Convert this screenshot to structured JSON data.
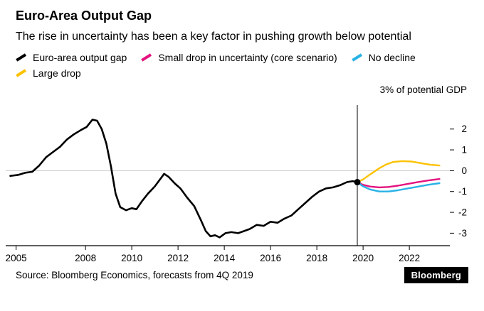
{
  "header": {
    "title": "Euro-Area Output Gap",
    "subtitle": "The rise in uncertainty has been a key factor in pushing growth below potential"
  },
  "legend": [
    {
      "label": "Euro-area output gap",
      "color": "#000000"
    },
    {
      "label": "Small drop in uncertainty (core scenario)",
      "color": "#e4127f"
    },
    {
      "label": "No decline",
      "color": "#29b2e6"
    },
    {
      "label": "Large drop",
      "color": "#fcc200"
    }
  ],
  "axis_note": "3% of potential GDP",
  "footer": {
    "source": "Source: Bloomberg Economics, forecasts from 4Q 2019",
    "brand": "Bloomberg"
  },
  "chart_data": {
    "type": "line",
    "title": "Euro-Area Output Gap",
    "xlabel": "",
    "ylabel": "% of potential GDP",
    "xlim": [
      2004.55,
      2023.75
    ],
    "ylim": [
      -3.6,
      3.15
    ],
    "x_ticks": [
      2005,
      2008,
      2010,
      2012,
      2014,
      2016,
      2018,
      2020,
      2022
    ],
    "y_ticks": [
      2,
      1,
      0,
      -1,
      -2,
      -3
    ],
    "zero_line_color": "#c9c9c9",
    "forecast_divider_x": 2019.75,
    "forecast_start_point": {
      "x": 2019.75,
      "y": -0.55
    },
    "series": [
      {
        "name": "Euro-area output gap",
        "color": "#000000",
        "width": 2.6,
        "points": [
          [
            2004.75,
            -0.25
          ],
          [
            2005.1,
            -0.2
          ],
          [
            2005.4,
            -0.1
          ],
          [
            2005.7,
            -0.05
          ],
          [
            2006.0,
            0.25
          ],
          [
            2006.3,
            0.65
          ],
          [
            2006.6,
            0.9
          ],
          [
            2006.9,
            1.15
          ],
          [
            2007.2,
            1.5
          ],
          [
            2007.5,
            1.75
          ],
          [
            2007.8,
            1.95
          ],
          [
            2008.05,
            2.1
          ],
          [
            2008.3,
            2.45
          ],
          [
            2008.5,
            2.4
          ],
          [
            2008.7,
            2.0
          ],
          [
            2008.9,
            1.3
          ],
          [
            2009.1,
            0.2
          ],
          [
            2009.3,
            -1.1
          ],
          [
            2009.5,
            -1.75
          ],
          [
            2009.75,
            -1.9
          ],
          [
            2010.0,
            -1.8
          ],
          [
            2010.2,
            -1.85
          ],
          [
            2010.45,
            -1.45
          ],
          [
            2010.7,
            -1.1
          ],
          [
            2011.0,
            -0.75
          ],
          [
            2011.2,
            -0.45
          ],
          [
            2011.4,
            -0.15
          ],
          [
            2011.6,
            -0.3
          ],
          [
            2011.85,
            -0.6
          ],
          [
            2012.1,
            -0.85
          ],
          [
            2012.4,
            -1.3
          ],
          [
            2012.7,
            -1.7
          ],
          [
            2013.0,
            -2.4
          ],
          [
            2013.2,
            -2.9
          ],
          [
            2013.4,
            -3.15
          ],
          [
            2013.6,
            -3.1
          ],
          [
            2013.8,
            -3.2
          ],
          [
            2014.05,
            -3.0
          ],
          [
            2014.3,
            -2.95
          ],
          [
            2014.6,
            -3.0
          ],
          [
            2014.85,
            -2.9
          ],
          [
            2015.1,
            -2.8
          ],
          [
            2015.4,
            -2.6
          ],
          [
            2015.7,
            -2.65
          ],
          [
            2016.0,
            -2.45
          ],
          [
            2016.3,
            -2.5
          ],
          [
            2016.6,
            -2.3
          ],
          [
            2016.9,
            -2.15
          ],
          [
            2017.2,
            -1.85
          ],
          [
            2017.5,
            -1.55
          ],
          [
            2017.8,
            -1.25
          ],
          [
            2018.1,
            -1.0
          ],
          [
            2018.4,
            -0.85
          ],
          [
            2018.7,
            -0.8
          ],
          [
            2019.0,
            -0.7
          ],
          [
            2019.3,
            -0.55
          ],
          [
            2019.55,
            -0.5
          ],
          [
            2019.75,
            -0.55
          ]
        ]
      },
      {
        "name": "Small drop in uncertainty (core scenario)",
        "color": "#e4127f",
        "width": 2.4,
        "points": [
          [
            2019.75,
            -0.55
          ],
          [
            2020.0,
            -0.68
          ],
          [
            2020.3,
            -0.76
          ],
          [
            2020.7,
            -0.8
          ],
          [
            2021.1,
            -0.78
          ],
          [
            2021.5,
            -0.72
          ],
          [
            2021.9,
            -0.64
          ],
          [
            2022.3,
            -0.56
          ],
          [
            2022.8,
            -0.47
          ],
          [
            2023.3,
            -0.4
          ]
        ]
      },
      {
        "name": "No decline",
        "color": "#29b2e6",
        "width": 2.4,
        "points": [
          [
            2019.75,
            -0.55
          ],
          [
            2020.0,
            -0.75
          ],
          [
            2020.3,
            -0.9
          ],
          [
            2020.7,
            -1.0
          ],
          [
            2021.1,
            -1.0
          ],
          [
            2021.5,
            -0.94
          ],
          [
            2021.9,
            -0.86
          ],
          [
            2022.3,
            -0.78
          ],
          [
            2022.8,
            -0.68
          ],
          [
            2023.3,
            -0.6
          ]
        ]
      },
      {
        "name": "Large drop",
        "color": "#fcc200",
        "width": 2.4,
        "points": [
          [
            2019.75,
            -0.55
          ],
          [
            2020.0,
            -0.42
          ],
          [
            2020.3,
            -0.18
          ],
          [
            2020.7,
            0.12
          ],
          [
            2021.0,
            0.3
          ],
          [
            2021.3,
            0.42
          ],
          [
            2021.7,
            0.46
          ],
          [
            2022.1,
            0.44
          ],
          [
            2022.5,
            0.36
          ],
          [
            2022.9,
            0.29
          ],
          [
            2023.3,
            0.25
          ]
        ]
      }
    ],
    "legend_position": "top",
    "grid": false
  }
}
